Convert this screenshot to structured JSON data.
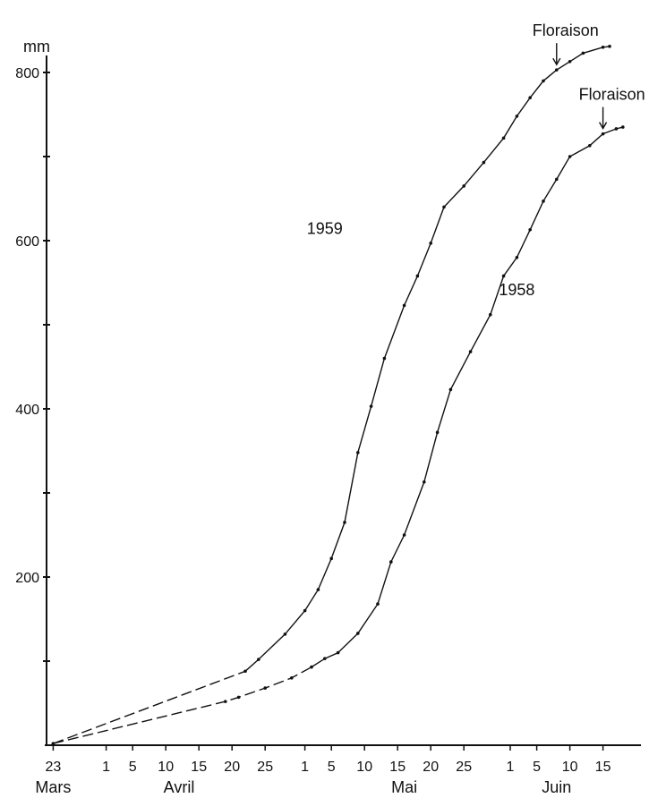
{
  "chart_data": {
    "type": "line",
    "title": "",
    "xlabel": "",
    "ylabel": "mm",
    "y_unit": "mm",
    "ylim": [
      0,
      850
    ],
    "y_ticks": [
      200,
      400,
      600,
      800
    ],
    "y_minor_ticks": [
      100,
      300,
      500,
      700
    ],
    "x_range": [
      "03-23",
      "06-18"
    ],
    "x_ticks": [
      {
        "date": "03-23",
        "label": "23"
      },
      {
        "date": "04-01",
        "label": "1"
      },
      {
        "date": "04-05",
        "label": "5"
      },
      {
        "date": "04-10",
        "label": "10"
      },
      {
        "date": "04-15",
        "label": "15"
      },
      {
        "date": "04-20",
        "label": "20"
      },
      {
        "date": "04-25",
        "label": "25"
      },
      {
        "date": "05-01",
        "label": "1"
      },
      {
        "date": "05-05",
        "label": "5"
      },
      {
        "date": "05-10",
        "label": "10"
      },
      {
        "date": "05-15",
        "label": "15"
      },
      {
        "date": "05-20",
        "label": "20"
      },
      {
        "date": "05-25",
        "label": "25"
      },
      {
        "date": "06-01",
        "label": "1"
      },
      {
        "date": "06-05",
        "label": "5"
      },
      {
        "date": "06-10",
        "label": "10"
      },
      {
        "date": "06-15",
        "label": "15"
      }
    ],
    "months": [
      {
        "label": "Mars",
        "date": "03-23"
      },
      {
        "label": "Avril",
        "date": "04-12"
      },
      {
        "label": "Mai",
        "date": "05-16"
      },
      {
        "label": "Juin",
        "date": "06-08"
      }
    ],
    "grid": false,
    "legend": "none",
    "series": [
      {
        "name": "1959",
        "dashed_until": "04-22",
        "label_pos": {
          "date": "05-04",
          "value": 608
        },
        "points": [
          [
            "03-23",
            2
          ],
          [
            "04-22",
            88
          ],
          [
            "04-24",
            102
          ],
          [
            "04-28",
            132
          ],
          [
            "05-01",
            160
          ],
          [
            "05-03",
            185
          ],
          [
            "05-05",
            222
          ],
          [
            "05-07",
            265
          ],
          [
            "05-09",
            348
          ],
          [
            "05-11",
            403
          ],
          [
            "05-13",
            460
          ],
          [
            "05-16",
            523
          ],
          [
            "05-18",
            558
          ],
          [
            "05-20",
            597
          ],
          [
            "05-22",
            640
          ],
          [
            "05-25",
            665
          ],
          [
            "05-28",
            693
          ],
          [
            "05-31",
            722
          ],
          [
            "06-02",
            748
          ],
          [
            "06-04",
            770
          ],
          [
            "06-06",
            790
          ],
          [
            "06-08",
            803
          ],
          [
            "06-10",
            813
          ],
          [
            "06-12",
            823
          ],
          [
            "06-15",
            830
          ],
          [
            "06-16",
            831
          ]
        ]
      },
      {
        "name": "1958",
        "dashed_until": "05-02",
        "label_pos": {
          "date": "06-02",
          "value": 535
        },
        "points": [
          [
            "03-23",
            2
          ],
          [
            "04-19",
            52
          ],
          [
            "04-21",
            57
          ],
          [
            "04-25",
            68
          ],
          [
            "04-29",
            80
          ],
          [
            "05-02",
            93
          ],
          [
            "05-04",
            103
          ],
          [
            "05-06",
            110
          ],
          [
            "05-09",
            133
          ],
          [
            "05-12",
            168
          ],
          [
            "05-14",
            218
          ],
          [
            "05-16",
            250
          ],
          [
            "05-19",
            313
          ],
          [
            "05-21",
            372
          ],
          [
            "05-23",
            423
          ],
          [
            "05-26",
            468
          ],
          [
            "05-29",
            512
          ],
          [
            "05-31",
            558
          ],
          [
            "06-02",
            580
          ],
          [
            "06-04",
            613
          ],
          [
            "06-06",
            647
          ],
          [
            "06-08",
            673
          ],
          [
            "06-10",
            700
          ],
          [
            "06-13",
            713
          ],
          [
            "06-15",
            727
          ],
          [
            "06-17",
            733
          ],
          [
            "06-18",
            735
          ]
        ]
      }
    ],
    "annotations": [
      {
        "text": "Floraison",
        "series": "1959",
        "date": "06-08",
        "value": 803
      },
      {
        "text": "Floraison",
        "series": "1958",
        "date": "06-15",
        "value": 727
      }
    ]
  }
}
